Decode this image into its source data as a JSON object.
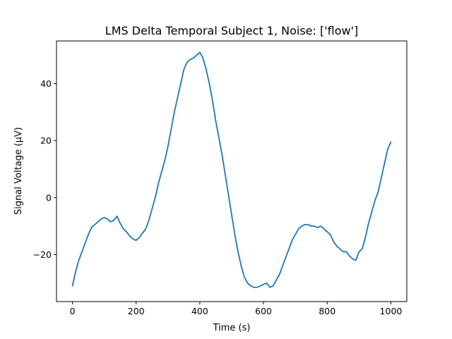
{
  "chart_data": {
    "type": "line",
    "title": "LMS Delta Temporal Subject 1, Noise: ['flow']",
    "xlabel": "Time (s)",
    "ylabel": "Signal Voltage (μV)",
    "xlim": [
      -50,
      1050
    ],
    "ylim": [
      -36.5,
      55
    ],
    "xticks": [
      0,
      200,
      400,
      600,
      800,
      1000
    ],
    "yticks": [
      -20,
      0,
      20,
      40
    ],
    "grid": false,
    "legend": null,
    "series": [
      {
        "color": "#1f77b4",
        "x": [
          0,
          10,
          20,
          30,
          40,
          50,
          60,
          70,
          80,
          90,
          100,
          110,
          120,
          130,
          140,
          150,
          160,
          170,
          180,
          190,
          200,
          210,
          220,
          230,
          240,
          250,
          260,
          270,
          280,
          290,
          300,
          310,
          320,
          330,
          340,
          350,
          360,
          370,
          380,
          390,
          400,
          410,
          420,
          430,
          440,
          450,
          460,
          470,
          480,
          490,
          500,
          510,
          520,
          530,
          540,
          550,
          560,
          570,
          580,
          590,
          600,
          610,
          620,
          630,
          640,
          650,
          660,
          670,
          680,
          690,
          700,
          710,
          720,
          730,
          740,
          750,
          760,
          770,
          780,
          790,
          800,
          810,
          820,
          830,
          840,
          850,
          860,
          870,
          880,
          890,
          900,
          910,
          920,
          930,
          940,
          950,
          960,
          970,
          980,
          990,
          1000
        ],
        "y": [
          -31,
          -26,
          -22,
          -19,
          -16,
          -13,
          -10.5,
          -9.5,
          -8.5,
          -7.5,
          -7,
          -7.5,
          -8.5,
          -8,
          -6.5,
          -9,
          -11,
          -12,
          -13.5,
          -14.5,
          -15,
          -14,
          -12.5,
          -11,
          -8,
          -4,
          0,
          5,
          9,
          13,
          18,
          24,
          30,
          35,
          40,
          45,
          47.5,
          48.5,
          49,
          50,
          51,
          49,
          45,
          40,
          34,
          27,
          21,
          15,
          8,
          1,
          -6,
          -13,
          -19,
          -24,
          -28,
          -30,
          -31,
          -31.5,
          -31.5,
          -31,
          -30.5,
          -30,
          -31.5,
          -31,
          -29,
          -27,
          -24,
          -21,
          -18,
          -15,
          -13,
          -11,
          -10,
          -9.5,
          -9.5,
          -10,
          -10,
          -10.5,
          -10,
          -11,
          -12,
          -13,
          -15.5,
          -17,
          -18,
          -19,
          -19,
          -20.5,
          -21.5,
          -22,
          -19,
          -18,
          -14,
          -9,
          -5,
          -1,
          2,
          7,
          12,
          17,
          19.5
        ]
      }
    ]
  }
}
